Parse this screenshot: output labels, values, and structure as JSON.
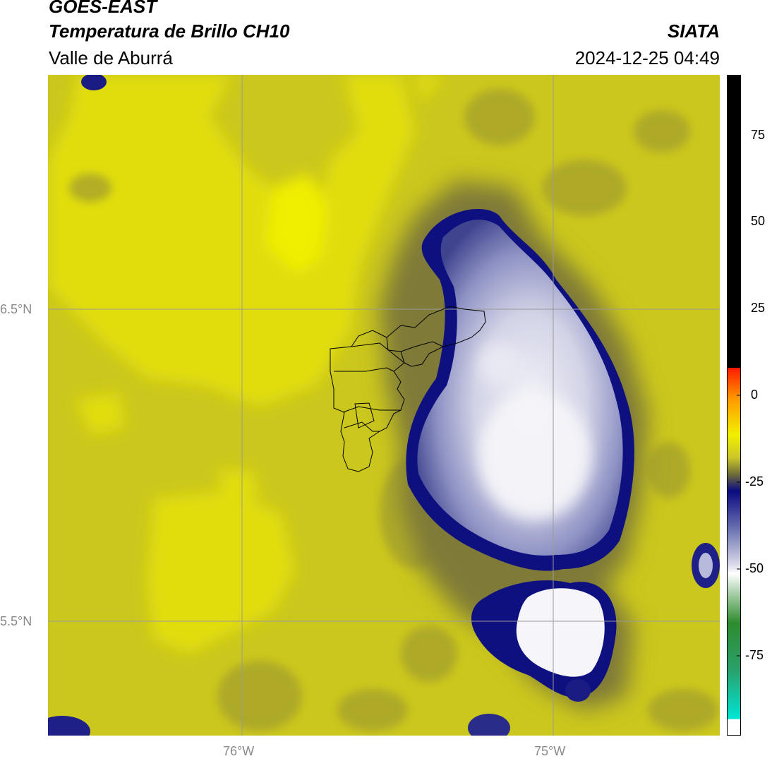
{
  "header": {
    "satellite": "GOES-EAST",
    "product": "Temperatura de Brillo CH10",
    "region": "Valle de Aburrá",
    "organization": "SIATA",
    "datetime": "2024-12-25 04:49"
  },
  "map": {
    "lat_labels": [
      "6.5°N",
      "5.5°N"
    ],
    "lon_labels": [
      "76°W",
      "75°W"
    ],
    "background_color": "#cbc71d"
  },
  "colorbar": {
    "ticks": [
      "75",
      "50",
      "25",
      "0",
      "-25",
      "-50",
      "-75"
    ],
    "colors": {
      "top": "#000000",
      "red": "#ff1a00",
      "orange": "#ff9900",
      "yellow": "#f2f000",
      "olive": "#8c8a25",
      "navy": "#0a0a80",
      "lavender": "#b0b3d8",
      "white": "#ffffff",
      "green": "#2e8b2e",
      "cyan": "#00e5d5"
    }
  }
}
